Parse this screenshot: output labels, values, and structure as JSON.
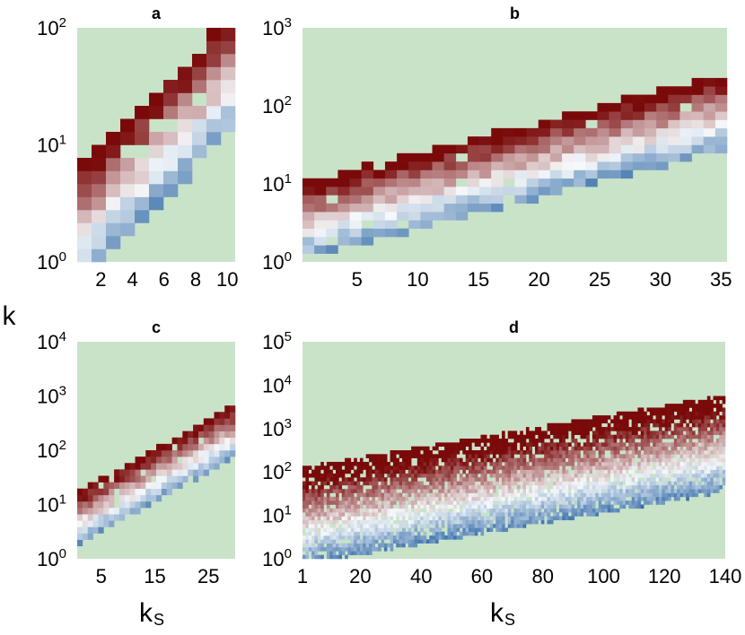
{
  "figure": {
    "ylabel": "k",
    "xlabel": "k",
    "xlabel_sub": "S",
    "background_color": "#c9e3c9",
    "colormap_low": "#0b4e96",
    "colormap_mid": "#f6f9fb",
    "colormap_high": "#7a0a0a"
  },
  "chart_data": [
    {
      "id": "a",
      "type": "heatmap",
      "title": "a",
      "xlim": [
        0.5,
        10.5
      ],
      "ylim_log10": [
        0,
        2
      ],
      "xticks": [
        2,
        4,
        6,
        8,
        10
      ],
      "xtick_labels": [
        "2",
        "4",
        "6",
        "8",
        "10"
      ],
      "ytick_exponents": [
        0,
        1,
        2
      ],
      "xlabel": "",
      "ylabel": "k"
    },
    {
      "id": "b",
      "type": "heatmap",
      "title": "b",
      "xlim": [
        0.5,
        35.5
      ],
      "ylim_log10": [
        0,
        3
      ],
      "xticks": [
        5,
        10,
        15,
        20,
        25,
        30,
        35
      ],
      "xtick_labels": [
        "5",
        "10",
        "15",
        "20",
        "25",
        "30",
        "35"
      ],
      "ytick_exponents": [
        0,
        1,
        2,
        3
      ],
      "xlabel": "",
      "ylabel": ""
    },
    {
      "id": "c",
      "type": "heatmap",
      "title": "c",
      "xlim": [
        0.5,
        30
      ],
      "ylim_log10": [
        0,
        4
      ],
      "xticks": [
        5,
        15,
        25
      ],
      "xtick_labels": [
        "5",
        "15",
        "25"
      ],
      "ytick_exponents": [
        0,
        1,
        2,
        3,
        4
      ],
      "xlabel": "ks",
      "ylabel": ""
    },
    {
      "id": "d",
      "type": "heatmap",
      "title": "d",
      "xlim": [
        1,
        140
      ],
      "ylim_log10": [
        0,
        5
      ],
      "xticks": [
        1,
        20,
        40,
        60,
        80,
        100,
        120,
        140
      ],
      "xtick_labels": [
        "1",
        "20",
        "40",
        "60",
        "80",
        "100",
        "120",
        "140"
      ],
      "ytick_exponents": [
        0,
        1,
        2,
        3,
        4,
        5
      ],
      "xlabel": "ks",
      "ylabel": ""
    }
  ]
}
